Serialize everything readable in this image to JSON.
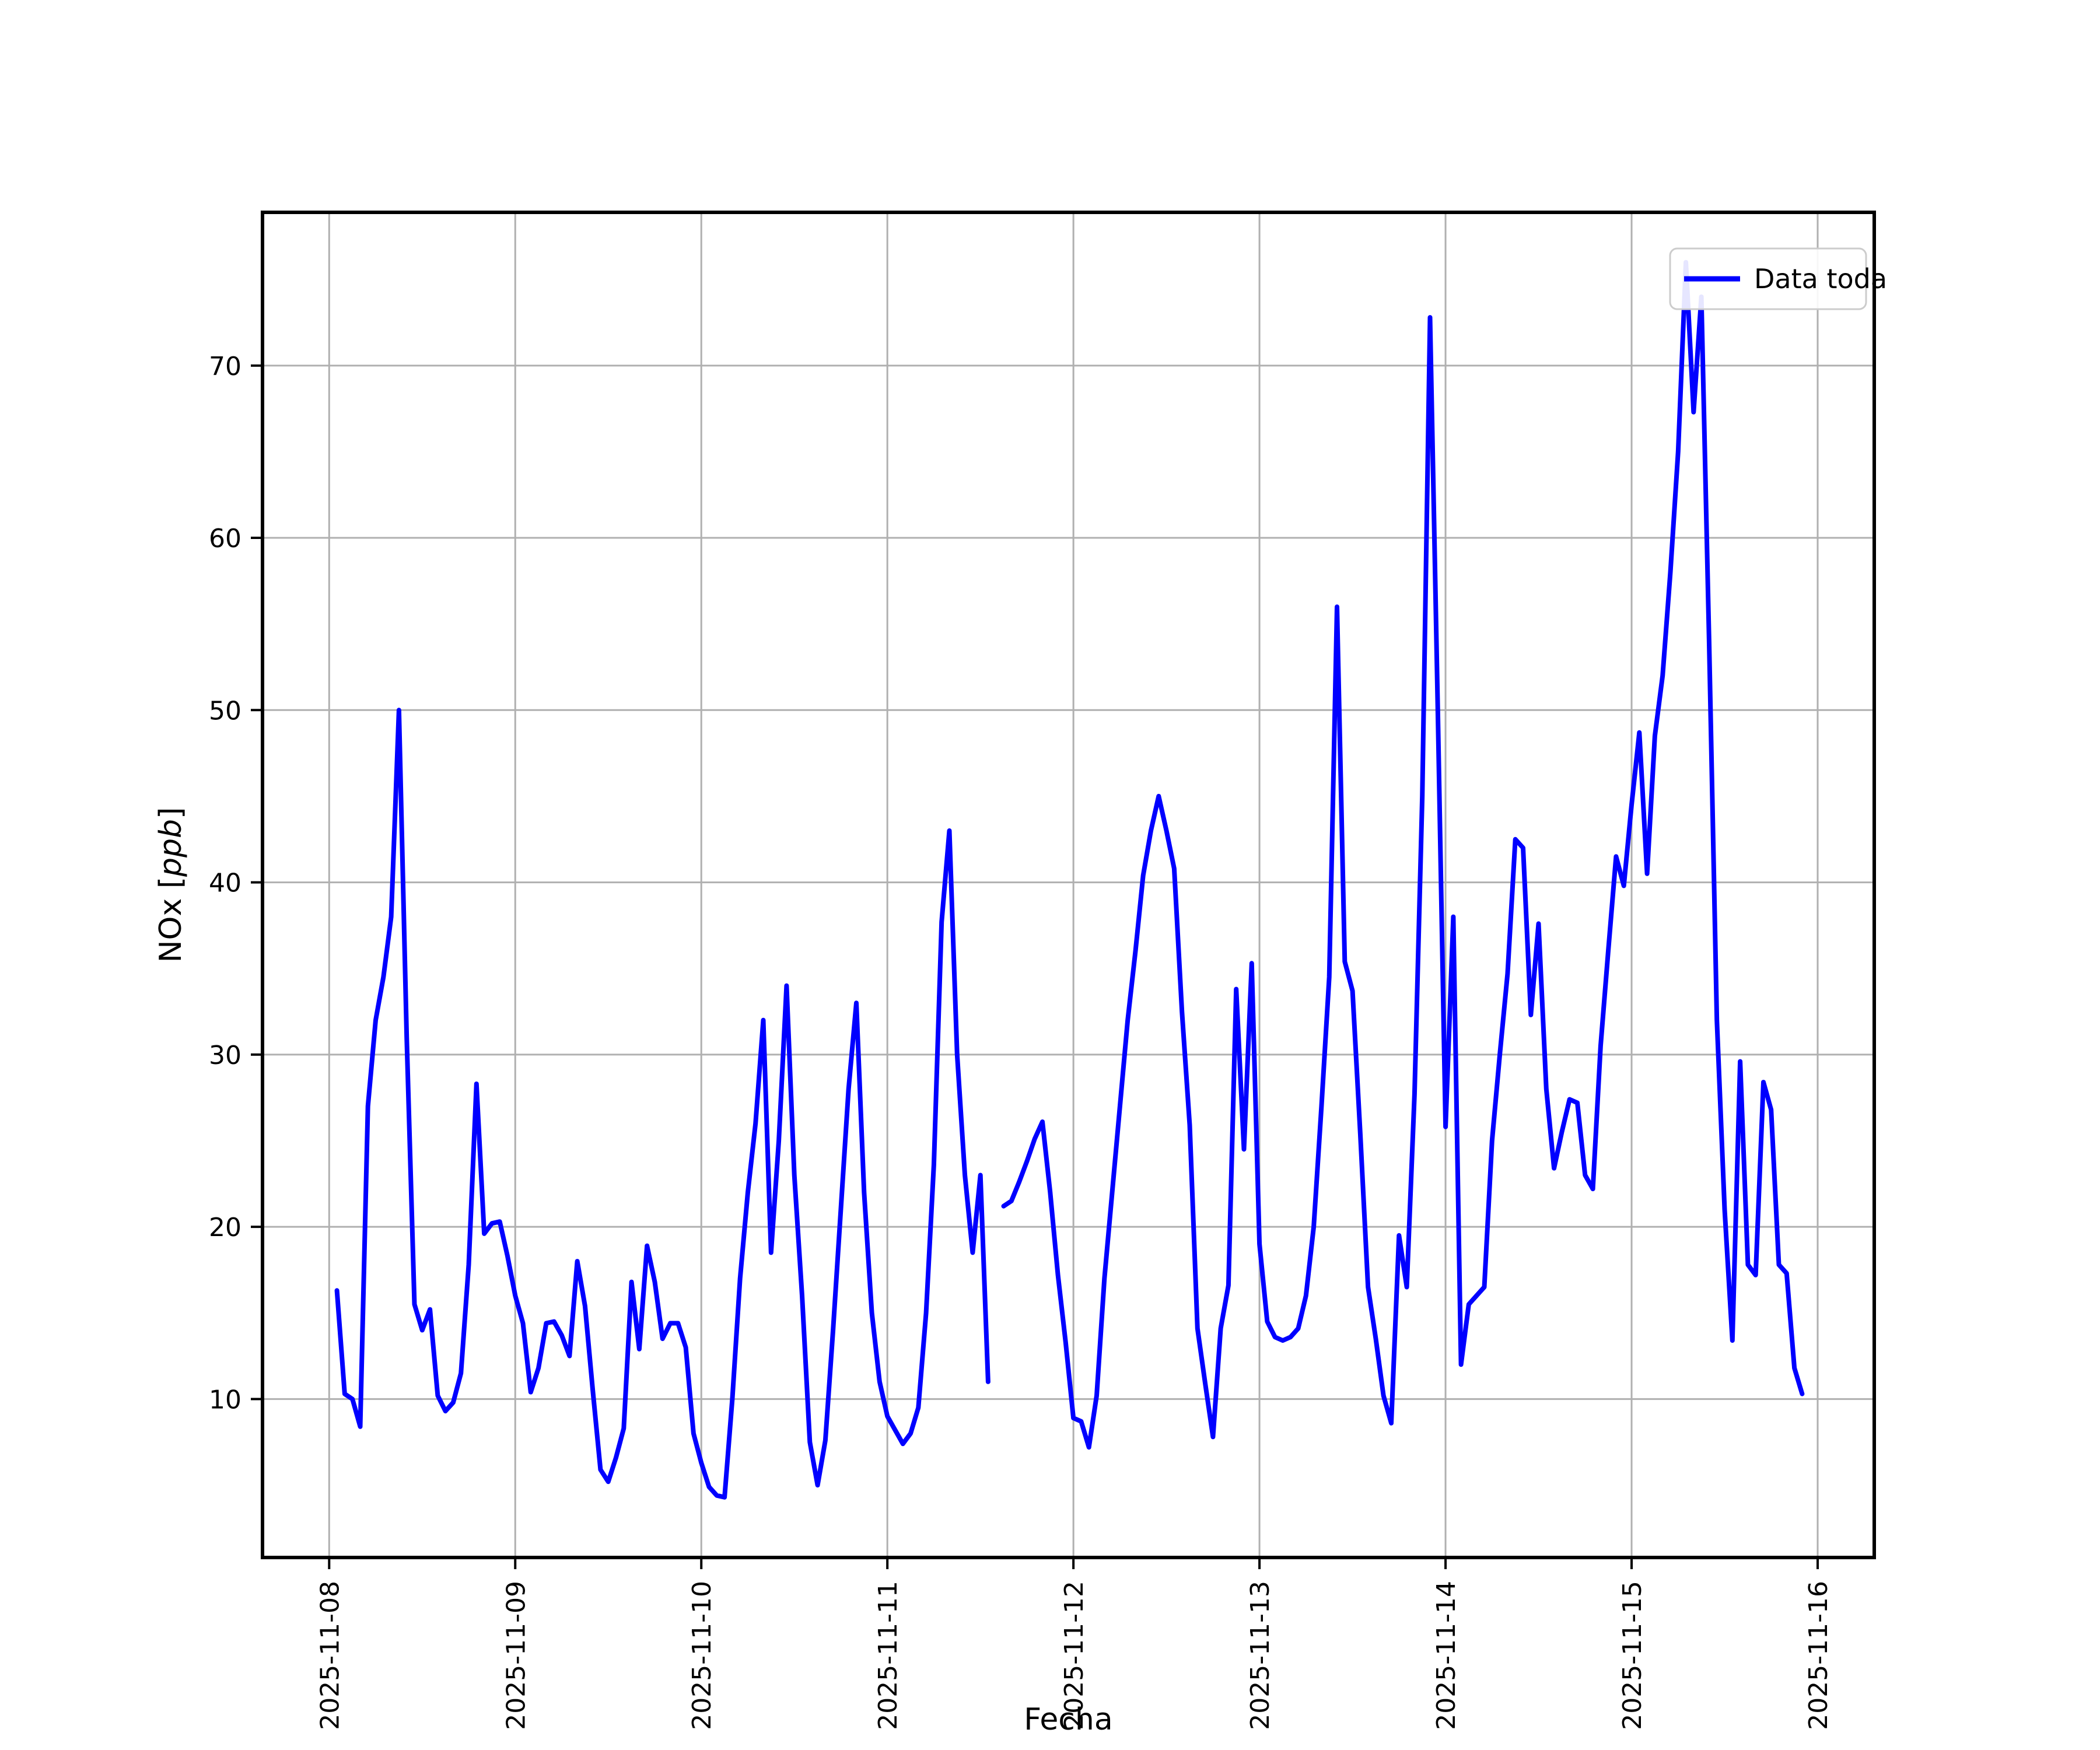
{
  "figure": {
    "background_color": "#ffffff",
    "xlabel": "Fecha",
    "ylabel_prefix": "NOx [",
    "ylabel_italic": "ppb",
    "ylabel_suffix": "]"
  },
  "legend": {
    "label": "Data toda",
    "position": "upper right",
    "border_color": "#cccccc",
    "swatch_color": "#0000ff"
  },
  "chart_data": {
    "type": "line",
    "title": "",
    "xlabel": "Fecha",
    "ylabel": "NOx [ppb]",
    "grid": true,
    "line_color": "#0000ff",
    "grid_color": "#b0b0b0",
    "spine_color": "#000000",
    "x_tick_labels": [
      "2025-11-08",
      "2025-11-09",
      "2025-11-10",
      "2025-11-11",
      "2025-11-12",
      "2025-11-13",
      "2025-11-14",
      "2025-11-15",
      "2025-11-16"
    ],
    "y_tick_labels": [
      "10",
      "20",
      "30",
      "40",
      "50",
      "60",
      "70"
    ],
    "y_ticks": [
      10,
      20,
      30,
      40,
      50,
      60,
      70
    ],
    "ylim": [
      0.8,
      78.9
    ],
    "xlim_hours_from_first_tick": [
      -8.6,
      199.3
    ],
    "series": [
      {
        "name": "Data toda",
        "start": "2025-11-08 01:00",
        "step_hours": 1,
        "note_gap": "null value = missing sample (visible line break on 2025-11-11 14:00)",
        "values": [
          16.3,
          10.3,
          10.0,
          8.4,
          27.0,
          32.0,
          34.5,
          38.0,
          50.0,
          31.0,
          15.5,
          14.0,
          15.2,
          10.2,
          9.3,
          9.8,
          11.5,
          17.8,
          28.3,
          19.6,
          20.2,
          20.3,
          18.3,
          16.0,
          14.4,
          10.4,
          11.8,
          14.4,
          14.5,
          13.7,
          12.5,
          18.0,
          15.4,
          10.5,
          5.9,
          5.2,
          6.6,
          8.3,
          16.8,
          12.9,
          18.9,
          16.8,
          13.5,
          14.4,
          14.4,
          13.0,
          8.0,
          6.3,
          4.9,
          4.4,
          4.3,
          10.0,
          17.0,
          22.0,
          26.0,
          32.0,
          18.5,
          25.0,
          34.0,
          23.0,
          16.0,
          7.5,
          5.0,
          7.6,
          14.0,
          21.0,
          28.0,
          33.0,
          22.0,
          15.0,
          11.0,
          9.0,
          8.2,
          7.4,
          8.0,
          9.5,
          15.0,
          23.6,
          37.7,
          43.0,
          30.0,
          23.0,
          18.5,
          23.0,
          11.0,
          null,
          21.2,
          21.5,
          22.6,
          23.8,
          25.1,
          26.1,
          22.0,
          17.2,
          13.3,
          8.9,
          8.7,
          7.2,
          10.2,
          17.0,
          22.0,
          27.0,
          32.0,
          36.0,
          40.4,
          43.0,
          45.0,
          43.0,
          40.8,
          32.5,
          25.9,
          14.1,
          10.9,
          7.8,
          14.1,
          16.6,
          33.8,
          24.5,
          35.3,
          19.0,
          14.5,
          13.6,
          13.4,
          13.6,
          14.1,
          16.0,
          20.0,
          27.0,
          34.5,
          56.0,
          35.4,
          33.7,
          25.4,
          16.5,
          13.5,
          10.2,
          8.6,
          19.5,
          16.5,
          27.7,
          45.0,
          72.8,
          50.0,
          25.8,
          38.0,
          12.0,
          15.5,
          16.0,
          16.5,
          25.0,
          30.0,
          34.7,
          42.5,
          42.0,
          32.3,
          37.6,
          28.0,
          23.4,
          25.5,
          27.4,
          27.2,
          23.0,
          22.2,
          30.5,
          36.1,
          41.5,
          39.8,
          44.5,
          48.7,
          40.5,
          48.5,
          52.0,
          58.0,
          65.0,
          76.0,
          67.3,
          74.0,
          54.0,
          32.0,
          21.0,
          13.4,
          29.6,
          17.8,
          17.2,
          28.4,
          26.8,
          17.8,
          17.3,
          11.8,
          10.3
        ]
      }
    ]
  }
}
